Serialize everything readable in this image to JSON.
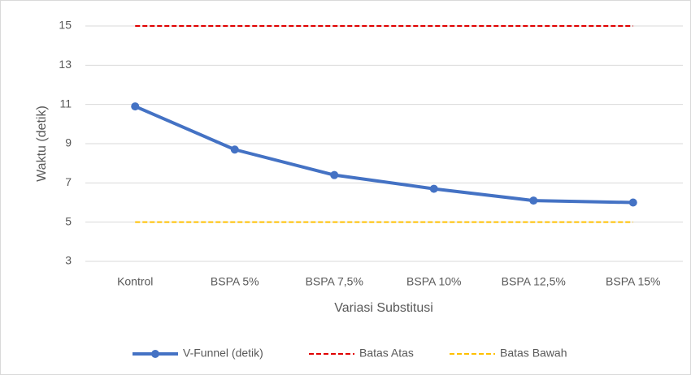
{
  "chart_data": {
    "type": "line",
    "x_label": "Variasi Substitusi",
    "y_label": "Waktu (detik)",
    "categories": [
      "Kontrol",
      "BSPA 5%",
      "BSPA 7,5%",
      "BSPA 10%",
      "BSPA 12,5%",
      "BSPA 15%"
    ],
    "series": [
      {
        "name": "V-Funnel (detik)",
        "color": "#4472c4",
        "style": "solid",
        "markers": true,
        "values": [
          10.9,
          8.7,
          7.4,
          6.7,
          6.1,
          6.0
        ]
      },
      {
        "name": "Batas Atas",
        "color": "#e00000",
        "style": "dashed",
        "markers": false,
        "values": [
          15,
          15,
          15,
          15,
          15,
          15
        ]
      },
      {
        "name": "Batas Bawah",
        "color": "#ffc000",
        "style": "dashed",
        "markers": false,
        "values": [
          5,
          5,
          5,
          5,
          5,
          5
        ]
      }
    ],
    "ylim": [
      3,
      15
    ],
    "yticks": [
      3,
      5,
      7,
      9,
      11,
      13,
      15
    ],
    "grid": true,
    "legend": "bottom"
  }
}
